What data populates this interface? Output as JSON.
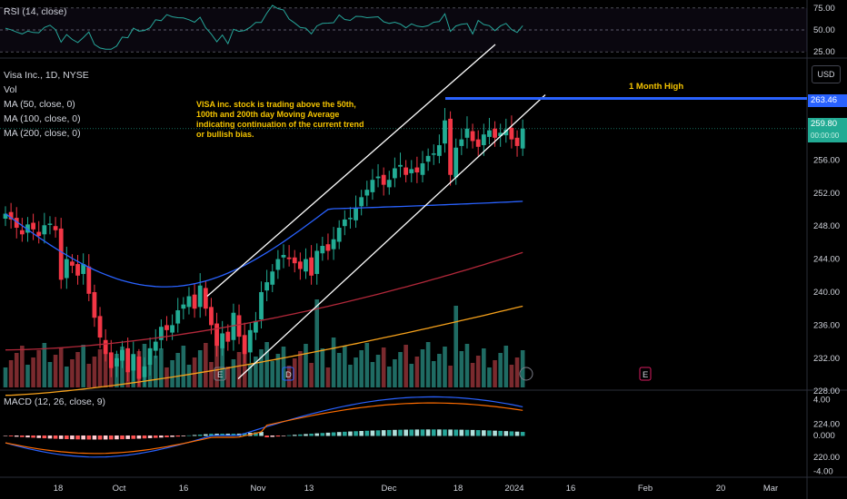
{
  "panes": {
    "rsi": {
      "label": "RSI (14, close)",
      "ticks": [
        "75.00",
        "50.00",
        "25.00"
      ]
    },
    "main": {
      "title": "Visa Inc., 1D, NYSE",
      "vol_label": "Vol",
      "ma_labels": [
        "MA (50, close, 0)",
        "MA (100, close, 0)",
        "MA (200, close, 0)"
      ],
      "currency": "USD",
      "price_ticks": [
        "256.00",
        "252.00",
        "248.00",
        "244.00",
        "240.00",
        "236.00",
        "232.00",
        "228.00",
        "224.00",
        "220.00"
      ],
      "high_tag": "263.46",
      "last_tag": "259.80",
      "last_sub": "00:00:00",
      "annotation": "VISA inc. stock is trading above the 50th, 100th and 200th day Moving Average indicating  continuation of the current trend or bullish bias.",
      "month_high_label": "1 Month High",
      "event_markers": [
        "E",
        "D",
        "E"
      ]
    },
    "macd": {
      "label": "MACD (12, 26, close, 9)",
      "ticks": [
        "4.00",
        "0.000",
        "-4.00"
      ]
    }
  },
  "x_axis": [
    "18",
    "Oct",
    "16",
    "Nov",
    "13",
    "Dec",
    "18",
    "2024",
    "16",
    "Feb",
    "20",
    "Mar"
  ],
  "colors": {
    "up": "#22ab94",
    "down": "#f23645",
    "up_vol": "#1f6b63",
    "down_vol": "#7a2a2e",
    "ma50": "#2962ff",
    "ma100": "#b2283a",
    "ma200": "#f7a21b",
    "high_line": "#2962ff"
  },
  "chart_data": {
    "type": "candlestick",
    "title": "Visa Inc., 1D, NYSE",
    "x_start": "2023-09-12",
    "closes": [
      249.5,
      248.8,
      247.8,
      247.0,
      248.2,
      247.6,
      246.8,
      248.1,
      248.3,
      247.5,
      241.5,
      244.0,
      243.2,
      242.0,
      243.4,
      239.8,
      236.9,
      234.5,
      232.5,
      230.8,
      232.0,
      233.0,
      230.3,
      232.5,
      229.5,
      231.0,
      233.2,
      234.0,
      235.8,
      235.4,
      236.0,
      237.8,
      238.5,
      239.5,
      238.0,
      240.8,
      238.0,
      236.0,
      233.5,
      235.0,
      234.0,
      237.5,
      234.6,
      232.5,
      235.4,
      236.5,
      240.0,
      241.2,
      242.5,
      244.0,
      244.5,
      244.0,
      243.5,
      242.8,
      244.0,
      242.0,
      245.0,
      245.6,
      245.0,
      246.4,
      247.8,
      248.8,
      249.0,
      250.2,
      251.5,
      252.4,
      253.6,
      254.0,
      253.0,
      253.6,
      255.0,
      255.4,
      254.2,
      254.9,
      254.5,
      255.6,
      256.5,
      256.8,
      257.8,
      260.8,
      254.2,
      257.5,
      258.5,
      259.8,
      258.3,
      257.6,
      259.1,
      259.6,
      258.7,
      259.3,
      259.7,
      258.5,
      257.7,
      259.8
    ],
    "ma50": {
      "start": 249.5,
      "end": 251.0
    },
    "ma100": {
      "start": 233.0,
      "end": 244.8
    },
    "ma200": {
      "start": 227.5,
      "end": 238.3
    },
    "one_month_high": 263.46,
    "last_price": 259.8,
    "ylim": [
      218,
      265
    ]
  }
}
